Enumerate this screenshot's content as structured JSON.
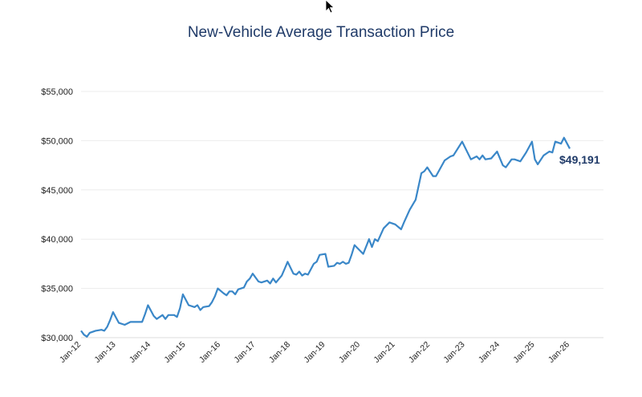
{
  "chart_data": {
    "type": "line",
    "title": "New-Vehicle Average Transaction Price",
    "xlabel": "",
    "ylabel": "",
    "ylim": [
      30000,
      55000
    ],
    "yticks": [
      "$30,000",
      "$35,000",
      "$40,000",
      "$45,000",
      "$50,000",
      "$55,000"
    ],
    "ytick_values": [
      30000,
      35000,
      40000,
      45000,
      50000,
      55000
    ],
    "xticks": [
      "Jan-12",
      "Jan-13",
      "Jan-14",
      "Jan-15",
      "Jan-16",
      "Jan-17",
      "Jan-18",
      "Jan-19",
      "Jan-20",
      "Jan-21",
      "Jan-22",
      "Jan-23",
      "Jan-24",
      "Jan-25",
      "Jan-26"
    ],
    "grid": true,
    "line_color": "#3a87c8",
    "annotation": "$49,191",
    "series": [
      {
        "points": [
          [
            "2012-01",
            30700
          ],
          [
            "2012-02",
            30300
          ],
          [
            "2012-03",
            30100
          ],
          [
            "2012-04",
            30500
          ],
          [
            "2012-06",
            30700
          ],
          [
            "2012-08",
            30800
          ],
          [
            "2012-09",
            30700
          ],
          [
            "2012-10",
            31100
          ],
          [
            "2012-11",
            31800
          ],
          [
            "2012-12",
            32600
          ],
          [
            "2013-02",
            31500
          ],
          [
            "2013-04",
            31300
          ],
          [
            "2013-06",
            31600
          ],
          [
            "2013-08",
            31600
          ],
          [
            "2013-10",
            31600
          ],
          [
            "2013-11",
            32400
          ],
          [
            "2013-12",
            33300
          ],
          [
            "2014-02",
            32200
          ],
          [
            "2014-03",
            31900
          ],
          [
            "2014-05",
            32300
          ],
          [
            "2014-06",
            31900
          ],
          [
            "2014-07",
            32300
          ],
          [
            "2014-09",
            32300
          ],
          [
            "2014-10",
            32100
          ],
          [
            "2014-11",
            33000
          ],
          [
            "2014-12",
            34400
          ],
          [
            "2015-02",
            33300
          ],
          [
            "2015-04",
            33100
          ],
          [
            "2015-05",
            33300
          ],
          [
            "2015-06",
            32800
          ],
          [
            "2015-07",
            33100
          ],
          [
            "2015-09",
            33200
          ],
          [
            "2015-10",
            33600
          ],
          [
            "2015-11",
            34200
          ],
          [
            "2015-12",
            35000
          ],
          [
            "2016-02",
            34500
          ],
          [
            "2016-03",
            34300
          ],
          [
            "2016-04",
            34700
          ],
          [
            "2016-05",
            34700
          ],
          [
            "2016-06",
            34400
          ],
          [
            "2016-07",
            34900
          ],
          [
            "2016-09",
            35100
          ],
          [
            "2016-10",
            35700
          ],
          [
            "2016-11",
            36000
          ],
          [
            "2016-12",
            36500
          ],
          [
            "2017-02",
            35700
          ],
          [
            "2017-03",
            35600
          ],
          [
            "2017-05",
            35800
          ],
          [
            "2017-06",
            35500
          ],
          [
            "2017-07",
            36000
          ],
          [
            "2017-08",
            35600
          ],
          [
            "2017-10",
            36300
          ],
          [
            "2017-11",
            37000
          ],
          [
            "2017-12",
            37700
          ],
          [
            "2018-02",
            36500
          ],
          [
            "2018-03",
            36400
          ],
          [
            "2018-04",
            36700
          ],
          [
            "2018-05",
            36300
          ],
          [
            "2018-06",
            36500
          ],
          [
            "2018-07",
            36400
          ],
          [
            "2018-09",
            37500
          ],
          [
            "2018-10",
            37700
          ],
          [
            "2018-11",
            38400
          ],
          [
            "2019-01",
            38500
          ],
          [
            "2019-02",
            37200
          ],
          [
            "2019-04",
            37300
          ],
          [
            "2019-05",
            37600
          ],
          [
            "2019-06",
            37500
          ],
          [
            "2019-07",
            37700
          ],
          [
            "2019-08",
            37500
          ],
          [
            "2019-09",
            37600
          ],
          [
            "2019-10",
            38400
          ],
          [
            "2019-11",
            39400
          ],
          [
            "2020-02",
            38500
          ],
          [
            "2020-04",
            40000
          ],
          [
            "2020-05",
            39200
          ],
          [
            "2020-06",
            40000
          ],
          [
            "2020-07",
            39800
          ],
          [
            "2020-09",
            41100
          ],
          [
            "2020-11",
            41700
          ],
          [
            "2021-01",
            41500
          ],
          [
            "2021-03",
            41000
          ],
          [
            "2021-04",
            41700
          ],
          [
            "2021-06",
            43000
          ],
          [
            "2021-08",
            44000
          ],
          [
            "2021-10",
            46700
          ],
          [
            "2021-11",
            46900
          ],
          [
            "2021-12",
            47300
          ],
          [
            "2022-02",
            46400
          ],
          [
            "2022-03",
            46400
          ],
          [
            "2022-06",
            48000
          ],
          [
            "2022-08",
            48400
          ],
          [
            "2022-09",
            48500
          ],
          [
            "2022-12",
            49900
          ],
          [
            "2023-03",
            48100
          ],
          [
            "2023-05",
            48400
          ],
          [
            "2023-06",
            48100
          ],
          [
            "2023-07",
            48500
          ],
          [
            "2023-08",
            48100
          ],
          [
            "2023-10",
            48200
          ],
          [
            "2023-12",
            48900
          ],
          [
            "2024-02",
            47500
          ],
          [
            "2024-03",
            47300
          ],
          [
            "2024-05",
            48100
          ],
          [
            "2024-06",
            48100
          ],
          [
            "2024-08",
            47900
          ],
          [
            "2024-10",
            48800
          ],
          [
            "2024-12",
            49900
          ],
          [
            "2025-01",
            48100
          ],
          [
            "2025-02",
            47600
          ],
          [
            "2025-04",
            48500
          ],
          [
            "2025-06",
            48900
          ],
          [
            "2025-07",
            48800
          ],
          [
            "2025-08",
            49900
          ],
          [
            "2025-10",
            49700
          ],
          [
            "2025-11",
            50300
          ],
          [
            "2026-01",
            49191
          ]
        ]
      }
    ]
  }
}
